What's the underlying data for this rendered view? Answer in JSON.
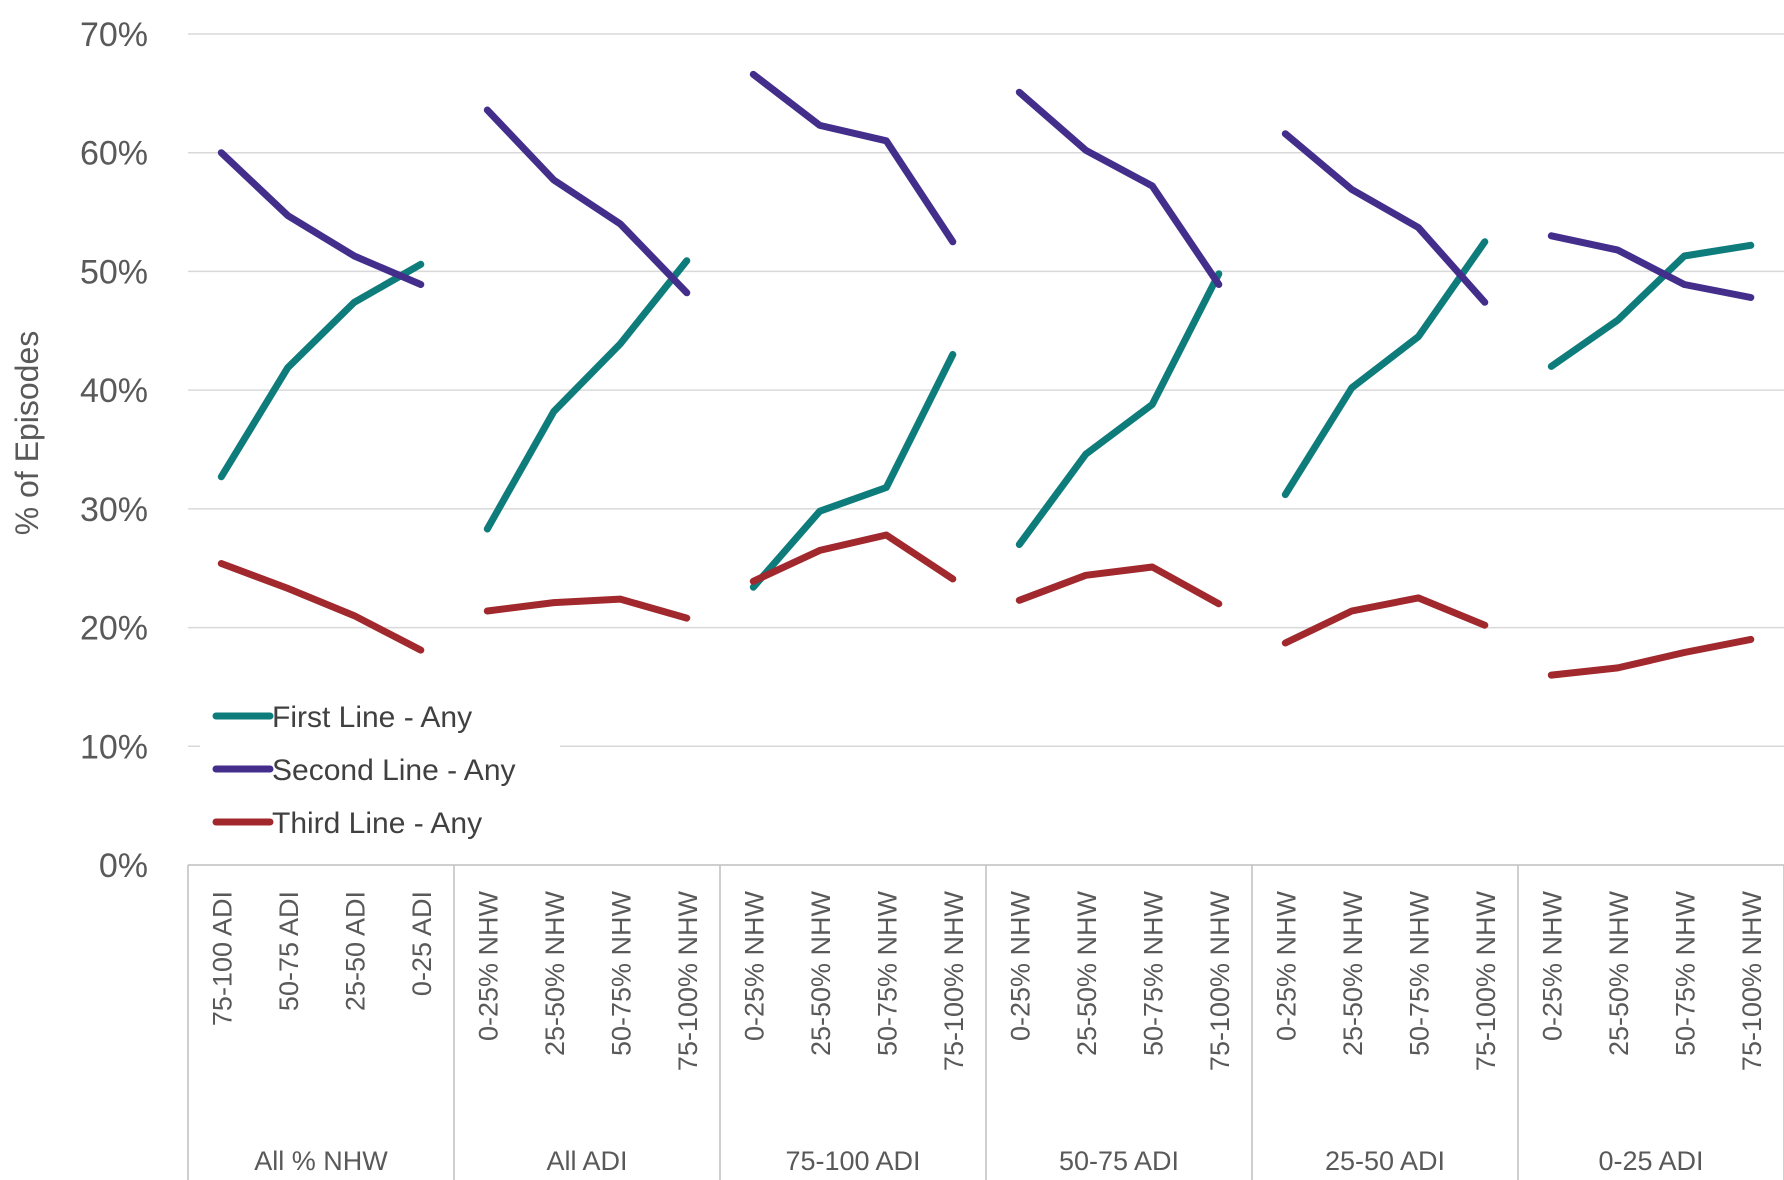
{
  "chart_data": {
    "type": "line",
    "title": "",
    "ylabel": "% of Episodes",
    "xlabel": "",
    "ylim": [
      0,
      70
    ],
    "yticks": [
      "0%",
      "10%",
      "20%",
      "30%",
      "40%",
      "50%",
      "60%",
      "70%"
    ],
    "grid": "horizontal",
    "legend_position": "bottom-left",
    "groups": [
      {
        "label": "All % NHW",
        "categories": [
          "75-100 ADI",
          "50-75 ADI",
          "25-50 ADI",
          "0-25 ADI"
        ]
      },
      {
        "label": "All ADI",
        "categories": [
          "0-25% NHW",
          "25-50% NHW",
          "50-75% NHW",
          "75-100% NHW"
        ]
      },
      {
        "label": "75-100 ADI",
        "categories": [
          "0-25% NHW",
          "25-50% NHW",
          "50-75% NHW",
          "75-100% NHW"
        ]
      },
      {
        "label": "50-75 ADI",
        "categories": [
          "0-25% NHW",
          "25-50% NHW",
          "50-75% NHW",
          "75-100% NHW"
        ]
      },
      {
        "label": "25-50 ADI",
        "categories": [
          "0-25% NHW",
          "25-50% NHW",
          "50-75% NHW",
          "75-100% NHW"
        ]
      },
      {
        "label": "0-25 ADI",
        "categories": [
          "0-25% NHW",
          "25-50% NHW",
          "50-75% NHW",
          "75-100% NHW"
        ]
      }
    ],
    "series": [
      {
        "name": "First Line - Any",
        "color": "#0E7C7B",
        "values": [
          [
            32.7,
            41.9,
            47.4,
            50.6
          ],
          [
            28.3,
            38.2,
            43.9,
            50.9
          ],
          [
            23.4,
            29.8,
            31.8,
            43.0
          ],
          [
            27.0,
            34.6,
            38.8,
            49.8
          ],
          [
            31.2,
            40.2,
            44.5,
            52.5
          ],
          [
            42.0,
            45.9,
            51.3,
            52.2
          ]
        ]
      },
      {
        "name": "Second Line - Any",
        "color": "#432E8C",
        "values": [
          [
            60.0,
            54.7,
            51.3,
            48.9
          ],
          [
            63.6,
            57.7,
            54.0,
            48.2
          ],
          [
            66.6,
            62.3,
            61.0,
            52.5
          ],
          [
            65.1,
            60.2,
            57.2,
            48.9
          ],
          [
            61.6,
            56.9,
            53.7,
            47.4
          ],
          [
            53.0,
            51.8,
            48.9,
            47.8
          ]
        ]
      },
      {
        "name": "Third Line - Any",
        "color": "#A1292D",
        "values": [
          [
            25.4,
            23.3,
            21.0,
            18.1
          ],
          [
            21.4,
            22.1,
            22.4,
            20.8
          ],
          [
            23.9,
            26.5,
            27.8,
            24.1
          ],
          [
            22.3,
            24.4,
            25.1,
            22.0
          ],
          [
            18.7,
            21.4,
            22.5,
            20.2
          ],
          [
            16.0,
            16.6,
            17.9,
            19.0
          ]
        ]
      }
    ]
  }
}
